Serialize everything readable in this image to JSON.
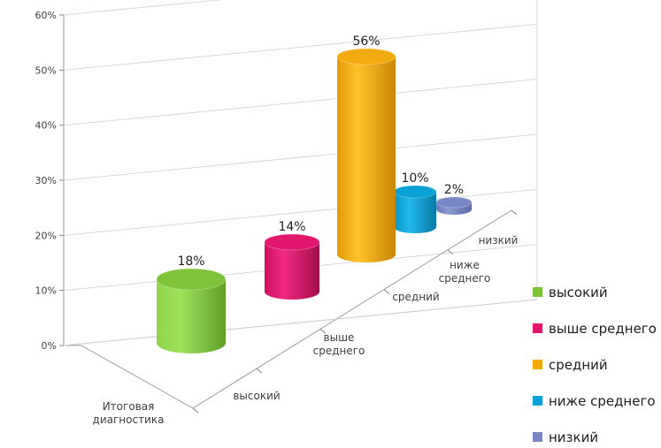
{
  "chart_data": {
    "type": "bar",
    "style": "3d-cylinder",
    "group_label": "Итоговая диагностика",
    "categories": [
      "высокий",
      "выше среднего",
      "средний",
      "ниже среднего",
      "низкий"
    ],
    "category_label_lines": [
      [
        "высокий"
      ],
      [
        "выше",
        "среднего"
      ],
      [
        "средний"
      ],
      [
        "ниже",
        "среднего"
      ],
      [
        "низкий"
      ]
    ],
    "values": [
      18,
      14,
      56,
      10,
      2
    ],
    "data_labels": [
      "18%",
      "14%",
      "56%",
      "10%",
      "2%"
    ],
    "colors": [
      "#7dc43b",
      "#e0176c",
      "#f2ab0e",
      "#0aa2d6",
      "#7886c6"
    ],
    "ylim": [
      0,
      60
    ],
    "y_ticks": [
      "0%",
      "10%",
      "20%",
      "30%",
      "40%",
      "50%",
      "60%"
    ],
    "grid": true,
    "legend": "right",
    "title": "",
    "xlabel": "",
    "ylabel": ""
  }
}
